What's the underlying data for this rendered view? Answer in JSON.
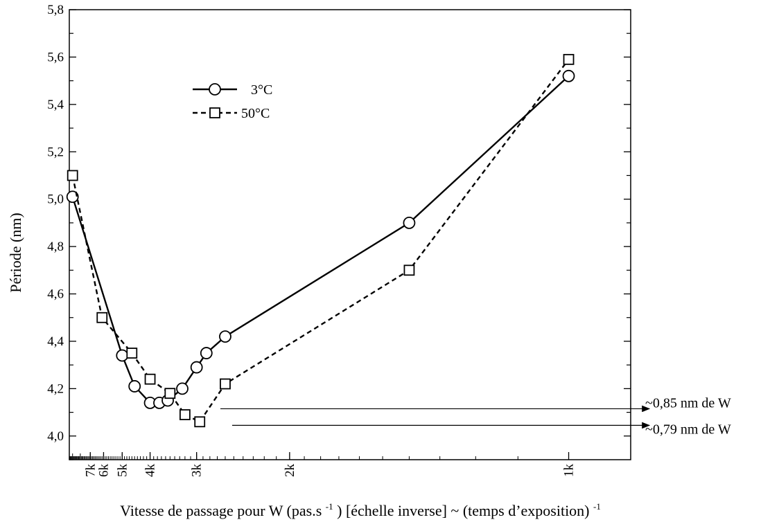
{
  "chart_data": {
    "type": "line",
    "xscale": "reciprocal",
    "xlabel": {
      "main": "Vitesse de passage pour W (pas.s",
      "sup1": "-1",
      "mid": ") [échelle inverse] ~ (temps d’exposition)",
      "sup2": "-1"
    },
    "ylabel": "Période (nm)",
    "ylim": [
      3.9,
      5.8
    ],
    "xlim": [
      9500,
      900
    ],
    "yticks": [
      {
        "value": 4.0,
        "label": "4,0"
      },
      {
        "value": 4.2,
        "label": "4,2"
      },
      {
        "value": 4.4,
        "label": "4,4"
      },
      {
        "value": 4.6,
        "label": "4,6"
      },
      {
        "value": 4.8,
        "label": "4,8"
      },
      {
        "value": 5.0,
        "label": "5,0"
      },
      {
        "value": 5.2,
        "label": "5,2"
      },
      {
        "value": 5.4,
        "label": "5,4"
      },
      {
        "value": 5.6,
        "label": "5,6"
      },
      {
        "value": 5.8,
        "label": "5,8"
      }
    ],
    "xticks": [
      {
        "value": 7000,
        "label": "7k"
      },
      {
        "value": 6000,
        "label": "6k"
      },
      {
        "value": 5000,
        "label": "5k"
      },
      {
        "value": 4000,
        "label": "4k"
      },
      {
        "value": 3000,
        "label": "3k"
      },
      {
        "value": 2000,
        "label": "2k"
      },
      {
        "value": 1000,
        "label": "1k"
      }
    ],
    "series": [
      {
        "name": "3°C",
        "marker": "circle",
        "line": "solid",
        "points": [
          {
            "x": 9000,
            "y": 5.01
          },
          {
            "x": 5000,
            "y": 4.34
          },
          {
            "x": 4500,
            "y": 4.21
          },
          {
            "x": 4000,
            "y": 4.14
          },
          {
            "x": 3750,
            "y": 4.14
          },
          {
            "x": 3550,
            "y": 4.15
          },
          {
            "x": 3250,
            "y": 4.2
          },
          {
            "x": 3000,
            "y": 4.29
          },
          {
            "x": 2850,
            "y": 4.35
          },
          {
            "x": 2600,
            "y": 4.42
          },
          {
            "x": 1400,
            "y": 4.9
          },
          {
            "x": 1000,
            "y": 5.52
          }
        ]
      },
      {
        "name": "50°C",
        "marker": "square",
        "line": "dashed",
        "points": [
          {
            "x": 9000,
            "y": 5.1
          },
          {
            "x": 6100,
            "y": 4.5
          },
          {
            "x": 4600,
            "y": 4.35
          },
          {
            "x": 4000,
            "y": 4.24
          },
          {
            "x": 3500,
            "y": 4.18
          },
          {
            "x": 3200,
            "y": 4.09
          },
          {
            "x": 2950,
            "y": 4.06
          },
          {
            "x": 2600,
            "y": 4.22
          },
          {
            "x": 1400,
            "y": 4.7
          },
          {
            "x": 1000,
            "y": 5.59
          }
        ]
      }
    ],
    "annotations": [
      {
        "text": "~0,85 nm de W",
        "y": 4.115
      },
      {
        "text": "~0,79 nm de W",
        "y": 4.045
      }
    ],
    "legend_position": "top-left"
  }
}
